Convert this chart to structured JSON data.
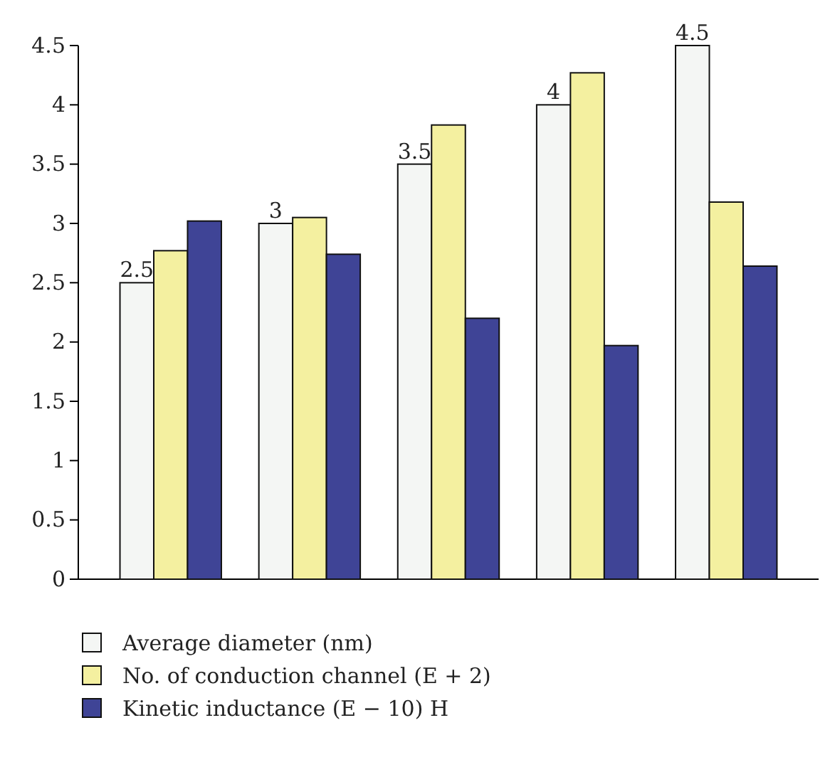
{
  "chart_data": {
    "type": "bar",
    "categories": [
      null,
      null,
      null,
      null,
      null
    ],
    "series": [
      {
        "name": "Average diameter (nm)",
        "color": "#f4f6f4",
        "values": [
          2.5,
          3,
          3.5,
          4,
          4.5
        ],
        "value_labels": [
          "2.5",
          "3",
          "3.5",
          "4",
          "4.5"
        ]
      },
      {
        "name": "No. of conduction channel (E + 2)",
        "color": "#f4f0a0",
        "values": [
          2.77,
          3.05,
          3.83,
          4.27,
          3.18
        ]
      },
      {
        "name": "Kinetic inductance (E − 10) H",
        "color": "#3f4496",
        "values": [
          3.02,
          2.74,
          2.2,
          1.97,
          2.64
        ]
      }
    ],
    "ylim": [
      0,
      4.5
    ],
    "yticks": [
      0,
      0.5,
      1,
      1.5,
      2,
      2.5,
      3,
      3.5,
      4,
      4.5
    ],
    "grid": false,
    "legend": "bottom left"
  }
}
